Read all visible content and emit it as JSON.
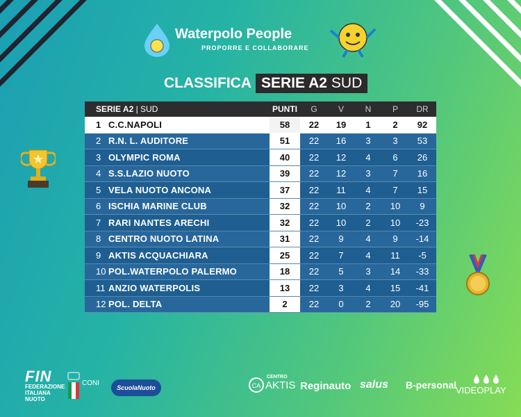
{
  "brand": {
    "name": "Waterpolo People",
    "tagline": "PROPORRE E COLLABORARE"
  },
  "heading": {
    "prefix": "CLASSIFICA",
    "league": "SERIE A2",
    "division": "SUD"
  },
  "table": {
    "header": {
      "league": "SERIE A2",
      "division": "SUD",
      "points": "PUNTI",
      "g": "G",
      "v": "V",
      "n": "N",
      "p": "P",
      "dr": "DR"
    },
    "rows": [
      {
        "pos": "1",
        "team": "C.C.NAPOLI",
        "pts": "58",
        "g": "22",
        "v": "19",
        "n": "1",
        "p": "2",
        "dr": "92"
      },
      {
        "pos": "2",
        "team": "R.N. L. AUDITORE",
        "pts": "51",
        "g": "22",
        "v": "16",
        "n": "3",
        "p": "3",
        "dr": "53"
      },
      {
        "pos": "3",
        "team": "OLYMPIC ROMA",
        "pts": "40",
        "g": "22",
        "v": "12",
        "n": "4",
        "p": "6",
        "dr": "26"
      },
      {
        "pos": "4",
        "team": "S.S.LAZIO NUOTO",
        "pts": "39",
        "g": "22",
        "v": "12",
        "n": "3",
        "p": "7",
        "dr": "16"
      },
      {
        "pos": "5",
        "team": "VELA NUOTO ANCONA",
        "pts": "37",
        "g": "22",
        "v": "11",
        "n": "4",
        "p": "7",
        "dr": "15"
      },
      {
        "pos": "6",
        "team": "ISCHIA MARINE CLUB",
        "pts": "32",
        "g": "22",
        "v": "10",
        "n": "2",
        "p": "10",
        "dr": "9"
      },
      {
        "pos": "7",
        "team": "RARI NANTES ARECHI",
        "pts": "32",
        "g": "22",
        "v": "10",
        "n": "2",
        "p": "10",
        "dr": "-23"
      },
      {
        "pos": "8",
        "team": "CENTRO NUOTO LATINA",
        "pts": "31",
        "g": "22",
        "v": "9",
        "n": "4",
        "p": "9",
        "dr": "-14"
      },
      {
        "pos": "9",
        "team": "AKTIS ACQUACHIARA",
        "pts": "25",
        "g": "22",
        "v": "7",
        "n": "4",
        "p": "11",
        "dr": "-5"
      },
      {
        "pos": "10",
        "team": "POL.WATERPOLO PALERMO",
        "pts": "18",
        "g": "22",
        "v": "5",
        "n": "3",
        "p": "14",
        "dr": "-33"
      },
      {
        "pos": "11",
        "team": "ANZIO WATERPOLIS",
        "pts": "13",
        "g": "22",
        "v": "3",
        "n": "4",
        "p": "15",
        "dr": "-41"
      },
      {
        "pos": "12",
        "team": "POL. DELTA",
        "pts": "2",
        "g": "22",
        "v": "0",
        "n": "2",
        "p": "20",
        "dr": "-95"
      }
    ]
  },
  "footer": {
    "fin": {
      "line1": "FIN",
      "line2": "FEDERAZIONE",
      "line3": "ITALIANA",
      "line4": "NUOTO"
    },
    "coni": "CONI",
    "scuola": "ScuolaNuoto",
    "sponsors": {
      "centro": "CENTRO",
      "aktis": "AKTIS",
      "reginauto": "Reginauto",
      "salus": "salus",
      "bpersonal": "B-personal",
      "videoplay": "VIDEOPLAY"
    }
  },
  "colors": {
    "row": "#1e5e91",
    "row_alt": "#28679b",
    "header": "#2d2d30",
    "lead": "#ffffff"
  }
}
